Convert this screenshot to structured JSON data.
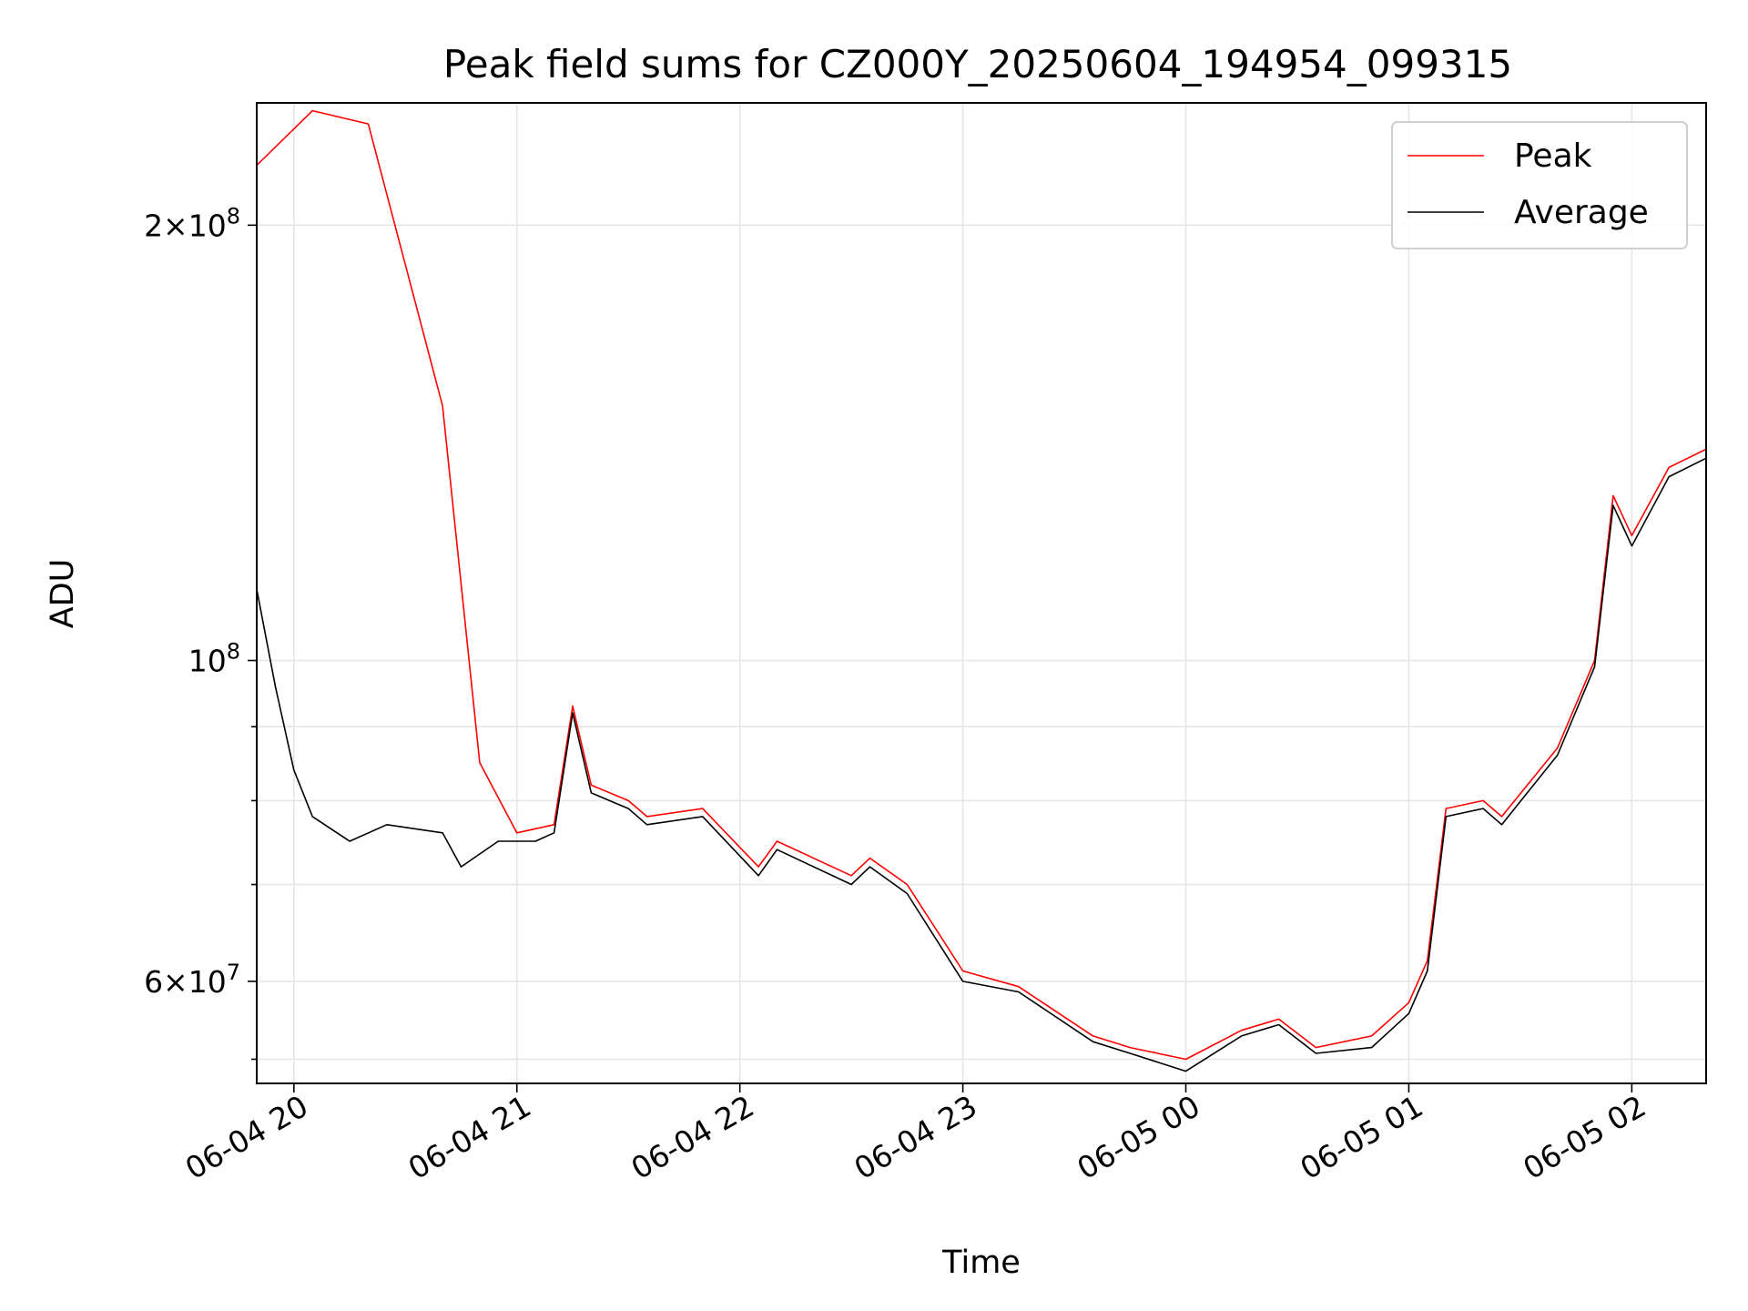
{
  "chart_data": {
    "type": "line",
    "title": "Peak field sums for CZ000Y_20250604_194954_099315",
    "xlabel": "Time",
    "ylabel": "ADU",
    "y_scale": "log",
    "xlim": [
      "2025-06-04 19:50",
      "2025-06-05 02:20"
    ],
    "ylim": [
      51000000,
      243000000
    ],
    "grid": true,
    "legend_position": "top-right",
    "x_ticks": [
      {
        "value": "2025-06-04 20:00",
        "label": "06-04 20"
      },
      {
        "value": "2025-06-04 21:00",
        "label": "06-04 21"
      },
      {
        "value": "2025-06-04 22:00",
        "label": "06-04 22"
      },
      {
        "value": "2025-06-04 23:00",
        "label": "06-04 23"
      },
      {
        "value": "2025-06-05 00:00",
        "label": "06-05 00"
      },
      {
        "value": "2025-06-05 01:00",
        "label": "06-05 01"
      },
      {
        "value": "2025-06-05 02:00",
        "label": "06-05 02"
      }
    ],
    "y_major_ticks": [
      {
        "value": 60000000,
        "base": "6",
        "exp": "7"
      },
      {
        "value": 100000000,
        "base": "",
        "exp": "8"
      },
      {
        "value": 200000000,
        "base": "2",
        "exp": "8"
      }
    ],
    "y_minor_ticks": [
      53000000,
      70000000,
      80000000,
      90000000
    ],
    "series": [
      {
        "name": "Peak",
        "color": "#ff0000",
        "x": [
          "2025-06-04 19:50",
          "2025-06-04 20:05",
          "2025-06-04 20:20",
          "2025-06-04 20:40",
          "2025-06-04 20:50",
          "2025-06-04 21:00",
          "2025-06-04 21:10",
          "2025-06-04 21:15",
          "2025-06-04 21:20",
          "2025-06-04 21:30",
          "2025-06-04 21:35",
          "2025-06-04 21:50",
          "2025-06-04 22:05",
          "2025-06-04 22:10",
          "2025-06-04 22:30",
          "2025-06-04 22:35",
          "2025-06-04 22:45",
          "2025-06-04 23:00",
          "2025-06-04 23:15",
          "2025-06-04 23:35",
          "2025-06-04 23:45",
          "2025-06-05 00:00",
          "2025-06-05 00:15",
          "2025-06-05 00:25",
          "2025-06-05 00:35",
          "2025-06-05 00:50",
          "2025-06-05 01:00",
          "2025-06-05 01:05",
          "2025-06-05 01:10",
          "2025-06-05 01:20",
          "2025-06-05 01:25",
          "2025-06-05 01:40",
          "2025-06-05 01:50",
          "2025-06-05 01:55",
          "2025-06-05 02:00",
          "2025-06-05 02:10",
          "2025-06-05 02:20"
        ],
        "y": [
          220000000,
          240000000,
          235000000,
          150000000,
          85000000,
          76000000,
          77000000,
          93000000,
          82000000,
          80000000,
          78000000,
          79000000,
          72000000,
          75000000,
          71000000,
          73000000,
          70000000,
          61000000,
          59500000,
          55000000,
          54000000,
          53000000,
          55500000,
          56500000,
          54000000,
          55000000,
          58000000,
          62000000,
          79000000,
          80000000,
          78000000,
          87000000,
          100000000,
          130000000,
          122000000,
          136000000,
          140000000
        ]
      },
      {
        "name": "Average",
        "color": "#000000",
        "x": [
          "2025-06-04 19:50",
          "2025-06-04 19:55",
          "2025-06-04 20:00",
          "2025-06-04 20:05",
          "2025-06-04 20:15",
          "2025-06-04 20:25",
          "2025-06-04 20:40",
          "2025-06-04 20:45",
          "2025-06-04 20:55",
          "2025-06-04 21:05",
          "2025-06-04 21:10",
          "2025-06-04 21:15",
          "2025-06-04 21:20",
          "2025-06-04 21:30",
          "2025-06-04 21:35",
          "2025-06-04 21:50",
          "2025-06-04 22:05",
          "2025-06-04 22:10",
          "2025-06-04 22:30",
          "2025-06-04 22:35",
          "2025-06-04 22:45",
          "2025-06-04 23:00",
          "2025-06-04 23:15",
          "2025-06-04 23:35",
          "2025-06-04 23:45",
          "2025-06-05 00:00",
          "2025-06-05 00:15",
          "2025-06-05 00:25",
          "2025-06-05 00:35",
          "2025-06-05 00:50",
          "2025-06-05 01:00",
          "2025-06-05 01:05",
          "2025-06-05 01:10",
          "2025-06-05 01:20",
          "2025-06-05 01:25",
          "2025-06-05 01:40",
          "2025-06-05 01:50",
          "2025-06-05 01:55",
          "2025-06-05 02:00",
          "2025-06-05 02:10",
          "2025-06-05 02:20"
        ],
        "y": [
          112000000,
          96000000,
          84000000,
          78000000,
          75000000,
          77000000,
          76000000,
          72000000,
          75000000,
          75000000,
          76000000,
          92000000,
          81000000,
          79000000,
          77000000,
          78000000,
          71000000,
          74000000,
          70000000,
          72000000,
          69000000,
          60000000,
          59000000,
          54500000,
          53500000,
          52000000,
          55000000,
          56000000,
          53500000,
          54000000,
          57000000,
          61000000,
          78000000,
          79000000,
          77000000,
          86000000,
          99000000,
          128000000,
          120000000,
          134000000,
          138000000
        ]
      }
    ]
  }
}
